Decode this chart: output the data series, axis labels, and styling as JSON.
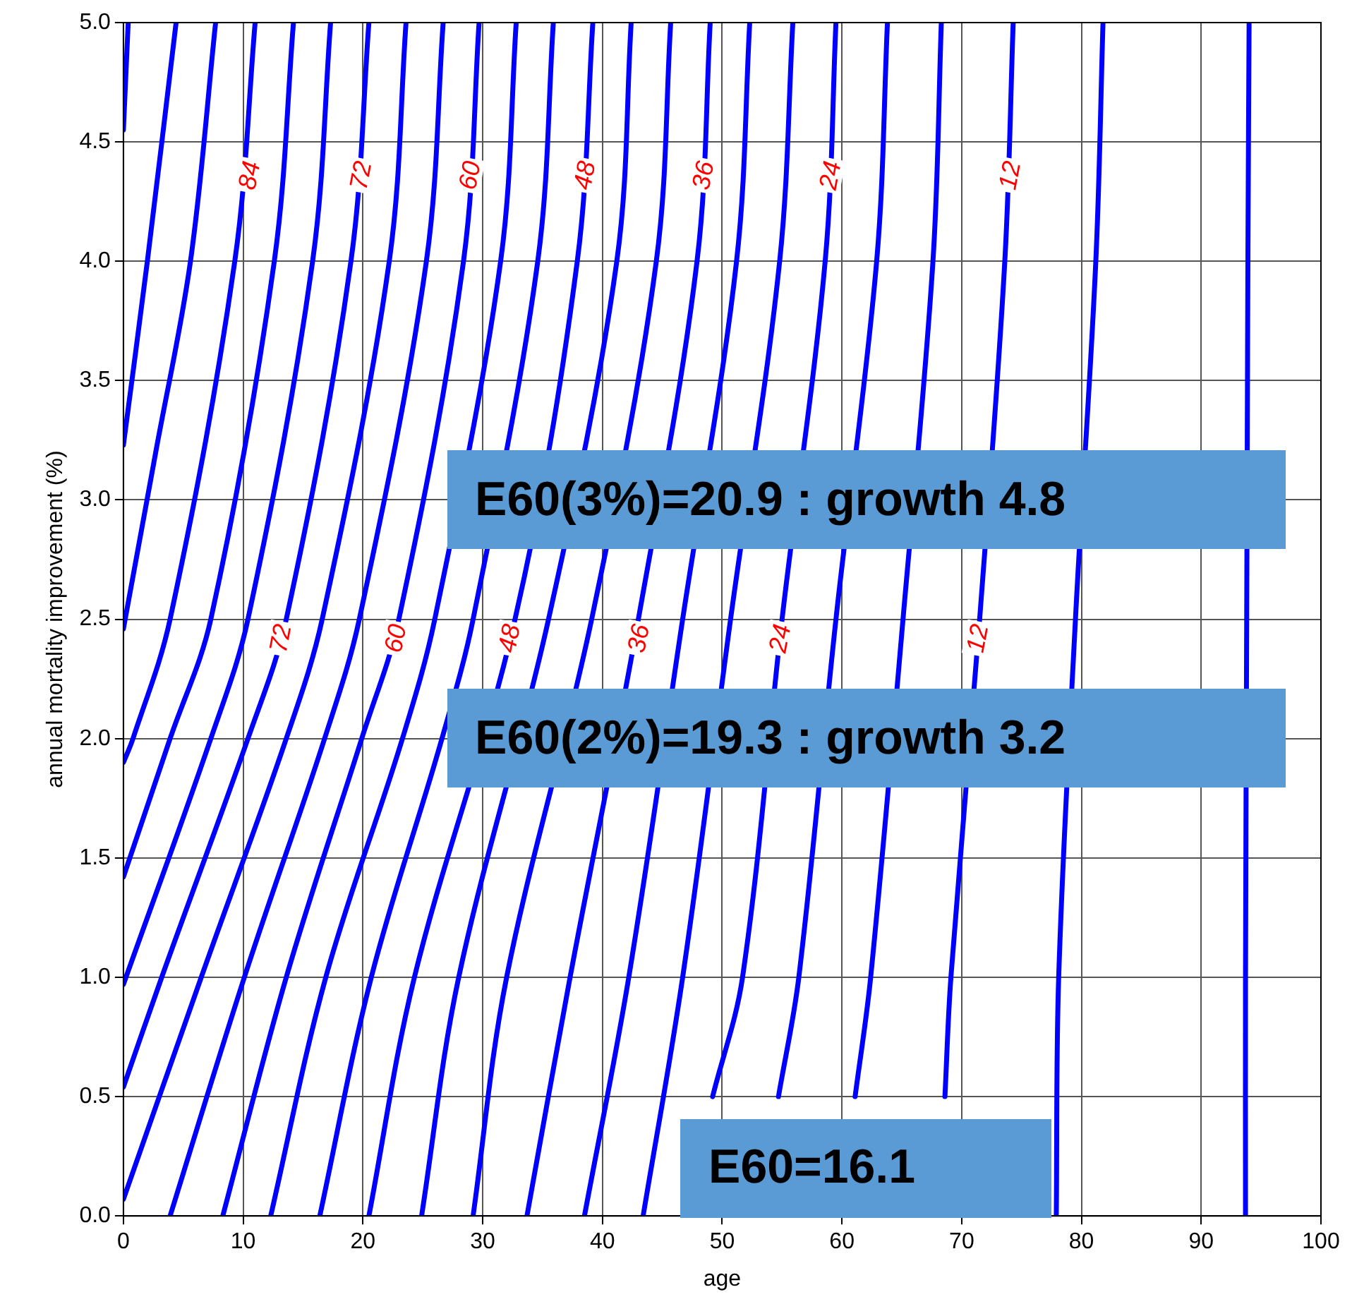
{
  "chart_data": {
    "type": "line",
    "xlabel": "age",
    "ylabel": "annual mortality improvement (%)",
    "xlim": [
      0,
      100
    ],
    "ylim": [
      0,
      5
    ],
    "xticks": [
      0,
      10,
      20,
      30,
      40,
      50,
      60,
      70,
      80,
      90,
      100
    ],
    "yticks": [
      {
        "value": 0,
        "label": "0.0"
      },
      {
        "value": 0.5,
        "label": "0.5"
      },
      {
        "value": 1,
        "label": "1.0"
      },
      {
        "value": 1.5,
        "label": "1.5"
      },
      {
        "value": 2,
        "label": "2.0"
      },
      {
        "value": 2.5,
        "label": "2.5"
      },
      {
        "value": 3,
        "label": "3.0"
      },
      {
        "value": 3.5,
        "label": "3.5"
      },
      {
        "value": 4,
        "label": "4.0"
      },
      {
        "value": 4.5,
        "label": "4.5"
      },
      {
        "value": 5,
        "label": "5.0"
      }
    ],
    "grid": true,
    "legend": false,
    "marker": "none",
    "line_style": "solid",
    "series": [
      {
        "color": "#0000ff",
        "x": [
          0.4,
          0
        ],
        "values": [
          5,
          4.55
        ]
      },
      {
        "color": "#0000ff",
        "x": [
          4.4,
          2.0,
          0
        ],
        "values": [
          5,
          4,
          3.23
        ]
      },
      {
        "color": "#0000ff",
        "x": [
          7.7,
          5.6,
          2.7,
          0
        ],
        "values": [
          5,
          4,
          3.2,
          2.46
        ]
      },
      {
        "color": "#0000ff",
        "x": [
          11.0,
          9.3,
          3.9,
          0.8,
          0
        ],
        "values": [
          5,
          4,
          2.5,
          2.0,
          1.9
        ]
      },
      {
        "color": "#0000ff",
        "x": [
          14.2,
          12.6,
          7.3,
          3.9,
          0
        ],
        "values": [
          5,
          4,
          2.5,
          2.0,
          1.42
        ]
      },
      {
        "color": "#0000ff",
        "x": [
          17.3,
          15.8,
          10.4,
          7.3,
          0
        ],
        "values": [
          5,
          4,
          2.5,
          2.0,
          0.97
        ]
      },
      {
        "color": "#0000ff",
        "x": [
          20.5,
          19.0,
          13.6,
          10.4,
          3.2,
          0
        ],
        "values": [
          5,
          4,
          2.5,
          2.0,
          1.0,
          0.54
        ]
      },
      {
        "color": "#0000ff",
        "x": [
          23.6,
          22.2,
          16.6,
          13.6,
          6.5,
          0
        ],
        "values": [
          5,
          4,
          2.5,
          2.0,
          1.0,
          0.07
        ]
      },
      {
        "color": "#0000ff",
        "x": [
          26.7,
          25.3,
          19.7,
          16.8,
          10.1,
          3.9
        ],
        "values": [
          5,
          4,
          2.5,
          2.0,
          1.0,
          0
        ]
      },
      {
        "color": "#0000ff",
        "x": [
          29.7,
          28.4,
          23.0,
          19.9,
          13.6,
          8.3
        ],
        "values": [
          5,
          4,
          2.5,
          2.0,
          1.0,
          0
        ]
      },
      {
        "color": "#0000ff",
        "x": [
          32.8,
          31.5,
          26.0,
          23.3,
          16.9,
          12.3
        ],
        "values": [
          5,
          4,
          2.5,
          2.0,
          1.0,
          0
        ]
      },
      {
        "color": "#0000ff",
        "x": [
          35.9,
          34.6,
          29.2,
          26.6,
          20.7,
          16.4
        ],
        "values": [
          5,
          4,
          2.5,
          2.0,
          1.0,
          0
        ]
      },
      {
        "color": "#0000ff",
        "x": [
          39.2,
          37.9,
          32.7,
          24.3,
          20.5
        ],
        "values": [
          5,
          4,
          2.5,
          1.0,
          0
        ]
      },
      {
        "color": "#0000ff",
        "x": [
          42.4,
          41.2,
          35.5,
          28.0,
          24.9
        ],
        "values": [
          5,
          4,
          2.5,
          1.0,
          0
        ]
      },
      {
        "color": "#0000ff",
        "x": [
          45.7,
          44.5,
          39.1,
          32.0,
          29.2
        ],
        "values": [
          5,
          4,
          2.5,
          1.0,
          0
        ]
      },
      {
        "color": "#0000ff",
        "x": [
          49.0,
          47.9,
          43.0,
          37.3,
          33.7
        ],
        "values": [
          5,
          4,
          2.5,
          1.0,
          0
        ]
      },
      {
        "color": "#0000ff",
        "x": [
          52.3,
          51.2,
          46.7,
          42.2,
          38.5
        ],
        "values": [
          5,
          4,
          2.5,
          1.0,
          0
        ]
      },
      {
        "color": "#0000ff",
        "x": [
          55.9,
          54.8,
          50.7,
          46.7,
          43.4
        ],
        "values": [
          5,
          4,
          2.5,
          1.0,
          0
        ]
      },
      {
        "color": "#0000ff",
        "x": [
          59.5,
          58.6,
          55.0,
          51.7,
          49.2
        ],
        "values": [
          5,
          4,
          2.5,
          1.0,
          0.5
        ]
      },
      {
        "color": "#0000ff",
        "x": [
          63.8,
          62.9,
          59.5,
          56.4,
          54.7
        ],
        "values": [
          5,
          4,
          2.5,
          1.0,
          0.5
        ]
      },
      {
        "color": "#0000ff",
        "x": [
          68.3,
          67.6,
          65.1,
          62.4,
          61.1
        ],
        "values": [
          5,
          4,
          2.5,
          1.0,
          0.5
        ]
      },
      {
        "color": "#0000ff",
        "x": [
          74.3,
          73.6,
          71.5,
          69.1,
          68.6
        ],
        "values": [
          5,
          4,
          2.5,
          1.0,
          0.5
        ]
      },
      {
        "color": "#0000ff",
        "x": [
          81.8,
          81.2,
          79.5,
          78.1,
          77.9
        ],
        "values": [
          5,
          4,
          2.5,
          1.0,
          0
        ]
      },
      {
        "color": "#0000ff",
        "x": [
          94.0,
          93.9,
          93.8,
          93.7,
          93.7
        ],
        "values": [
          5,
          4,
          2.5,
          1.0,
          0
        ]
      }
    ],
    "annotations": [
      {
        "text": "84",
        "x": 10.5,
        "y": 4.36
      },
      {
        "text": "72",
        "x": 19.8,
        "y": 4.36
      },
      {
        "text": "60",
        "x": 28.9,
        "y": 4.36
      },
      {
        "text": "48",
        "x": 38.5,
        "y": 4.36
      },
      {
        "text": "36",
        "x": 48.4,
        "y": 4.36
      },
      {
        "text": "24",
        "x": 59.0,
        "y": 4.36
      },
      {
        "text": "12",
        "x": 74.0,
        "y": 4.36
      },
      {
        "text": "72",
        "x": 13.1,
        "y": 2.42
      },
      {
        "text": "60",
        "x": 22.7,
        "y": 2.42
      },
      {
        "text": "48",
        "x": 32.2,
        "y": 2.42
      },
      {
        "text": "36",
        "x": 43.0,
        "y": 2.42
      },
      {
        "text": "24",
        "x": 54.8,
        "y": 2.42
      },
      {
        "text": "12",
        "x": 71.3,
        "y": 2.42
      },
      "E60(3%)=20.9 : growth 4.8",
      "E60(2%)=19.3 : growth 3.2",
      "E60=16.1"
    ]
  }
}
